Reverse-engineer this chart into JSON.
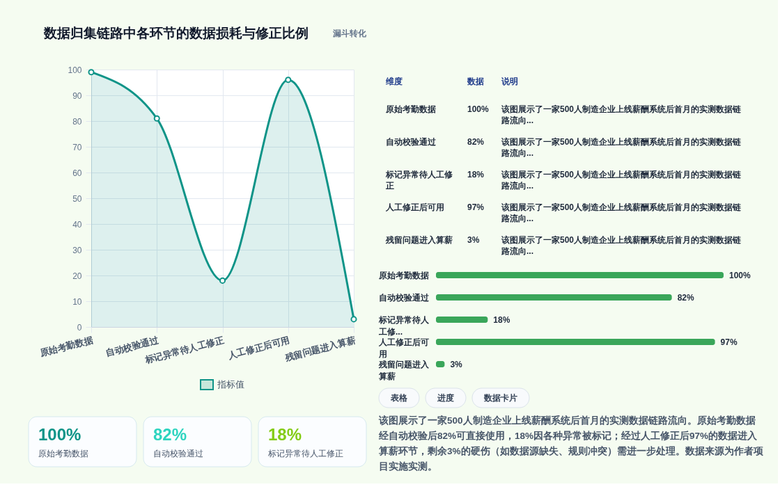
{
  "chart_data": [
    {
      "type": "area",
      "title": "数据归集链路中各环节的数据损耗与修正比例",
      "subtitle": "漏斗转化",
      "categories": [
        "原始考勤数据",
        "自动校验通过",
        "标记异常待人工修正",
        "人工修正后可用",
        "残留问题进入算薪"
      ],
      "series": [
        {
          "name": "指标值",
          "color": "#0f9488",
          "values": [
            99,
            81,
            18,
            96,
            3
          ]
        }
      ],
      "ylim": [
        0,
        100
      ],
      "yticks": [
        0,
        10,
        20,
        30,
        40,
        50,
        60,
        70,
        80,
        90,
        100
      ],
      "grid": true,
      "legend": "bottom",
      "marker": "circle",
      "line_style": "solid"
    },
    {
      "type": "other",
      "categories": [
        "维度",
        "数据",
        "说明"
      ],
      "cell_labels": [
        [
          "原始考勤数据",
          "100%",
          "该图展示了一家500人制造企业上线薪酬系统后首月的实测数据链路流向..."
        ],
        [
          "自动校验通过",
          "82%",
          "该图展示了一家500人制造企业上线薪酬系统后首月的实测数据链路流向..."
        ],
        [
          "标记异常待人工修正",
          "18%",
          "该图展示了一家500人制造企业上线薪酬系统后首月的实测数据链路流向..."
        ],
        [
          "人工修正后可用",
          "97%",
          "该图展示了一家500人制造企业上线薪酬系统后首月的实测数据链路流向..."
        ],
        [
          "残留问题进入算薪",
          "3%",
          "该图展示了一家500人制造企业上线薪酬系统后首月的实测数据链路流向..."
        ]
      ]
    },
    {
      "type": "bar",
      "orientation": "horizontal",
      "categories": [
        "原始考勤数据",
        "自动校验通过",
        "标记异常待人工修...",
        "人工修正后可用",
        "残留问题进入算薪"
      ],
      "values": [
        100,
        82,
        18,
        97,
        3
      ],
      "value_labels": [
        "100%",
        "82%",
        "18%",
        "97%",
        "3%"
      ],
      "color": "#3aa65a"
    },
    {
      "type": "other",
      "categories": [
        "原始考勤数据",
        "自动校验通过",
        "标记异常待人工修正"
      ],
      "value_labels": [
        "100%",
        "82%",
        "18%"
      ]
    },
    {
      "type": "other",
      "categories": [
        "表格",
        "进度",
        "数据卡片"
      ],
      "annotations": [
        "该图展示了一家500人制造企业上线薪酬系统后首月的实测数据链路流向。原始考勤数据经自动校验后82%可直接使用，18%因各种异常被标记；经过人工修正后97%的数据进入算薪环节，剩余3%的硬伤（如数据源缺失、规则冲突）需进一步处理。数据来源为作者项目实施实测。"
      ]
    }
  ]
}
